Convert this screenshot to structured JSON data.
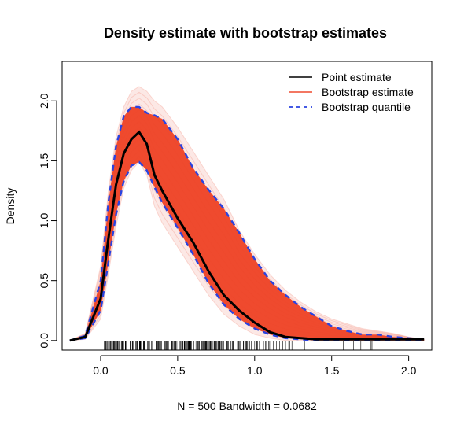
{
  "chart_data": {
    "type": "line",
    "title": "Density estimate with bootstrap estimates",
    "xlabel": "N = 500   Bandwidth = 0.0682",
    "ylabel": "Density",
    "xlim": [
      -0.25,
      2.15
    ],
    "ylim": [
      -0.08,
      2.33
    ],
    "x_ticks": [
      "0.0",
      "0.5",
      "1.0",
      "1.5",
      "2.0"
    ],
    "y_ticks": [
      "0.0",
      "0.5",
      "1.0",
      "1.5",
      "2.0"
    ],
    "grid": false,
    "legend_position": "top-right",
    "colors": {
      "point_estimate": "#000000",
      "bootstrap_estimate": "#ef4a2e",
      "bootstrap_quantile": "#2a43e0"
    },
    "x": [
      -0.2,
      -0.1,
      0.0,
      0.05,
      0.1,
      0.15,
      0.2,
      0.25,
      0.3,
      0.35,
      0.4,
      0.5,
      0.6,
      0.7,
      0.8,
      0.9,
      1.0,
      1.1,
      1.2,
      1.3,
      1.4,
      1.5,
      1.6,
      1.7,
      1.8,
      1.9,
      2.0,
      2.1
    ],
    "series": [
      {
        "name": "Point estimate",
        "values": [
          0.0,
          0.03,
          0.35,
          0.85,
          1.3,
          1.56,
          1.68,
          1.74,
          1.64,
          1.38,
          1.25,
          1.02,
          0.82,
          0.58,
          0.38,
          0.25,
          0.15,
          0.07,
          0.03,
          0.02,
          0.01,
          0.01,
          0.01,
          0.01,
          0.01,
          0.01,
          0.01,
          0.01
        ]
      },
      {
        "name": "Bootstrap estimate",
        "lower": [
          0.0,
          0.01,
          0.18,
          0.55,
          0.95,
          1.27,
          1.42,
          1.49,
          1.38,
          1.12,
          0.98,
          0.78,
          0.58,
          0.38,
          0.22,
          0.12,
          0.05,
          0.02,
          0.0,
          0.0,
          0.0,
          0.0,
          0.0,
          0.0,
          0.0,
          0.0,
          0.0,
          0.0
        ],
        "upper": [
          0.0,
          0.06,
          0.62,
          1.25,
          1.7,
          1.95,
          2.08,
          2.12,
          2.08,
          2.0,
          1.95,
          1.78,
          1.58,
          1.38,
          1.18,
          0.92,
          0.72,
          0.55,
          0.42,
          0.32,
          0.24,
          0.18,
          0.14,
          0.1,
          0.08,
          0.06,
          0.03,
          0.01
        ]
      },
      {
        "name": "Bootstrap quantile",
        "lower": [
          0.0,
          0.02,
          0.25,
          0.65,
          1.05,
          1.33,
          1.46,
          1.49,
          1.42,
          1.28,
          1.15,
          0.94,
          0.72,
          0.48,
          0.3,
          0.18,
          0.1,
          0.05,
          0.02,
          0.01,
          0.0,
          0.0,
          0.0,
          0.0,
          0.0,
          0.0,
          0.0,
          0.0
        ],
        "upper": [
          0.0,
          0.04,
          0.5,
          1.15,
          1.62,
          1.87,
          1.95,
          1.95,
          1.9,
          1.88,
          1.85,
          1.68,
          1.44,
          1.26,
          1.1,
          0.9,
          0.68,
          0.5,
          0.38,
          0.28,
          0.2,
          0.12,
          0.08,
          0.05,
          0.05,
          0.03,
          0.02,
          0.01
        ]
      }
    ],
    "rug_segments": [
      [
        0.02,
        0.55,
        120
      ],
      [
        0.55,
        0.85,
        70
      ],
      [
        0.85,
        1.1,
        30
      ],
      [
        1.1,
        1.35,
        10
      ],
      [
        1.35,
        1.6,
        5
      ],
      [
        1.6,
        2.0,
        4
      ]
    ]
  }
}
